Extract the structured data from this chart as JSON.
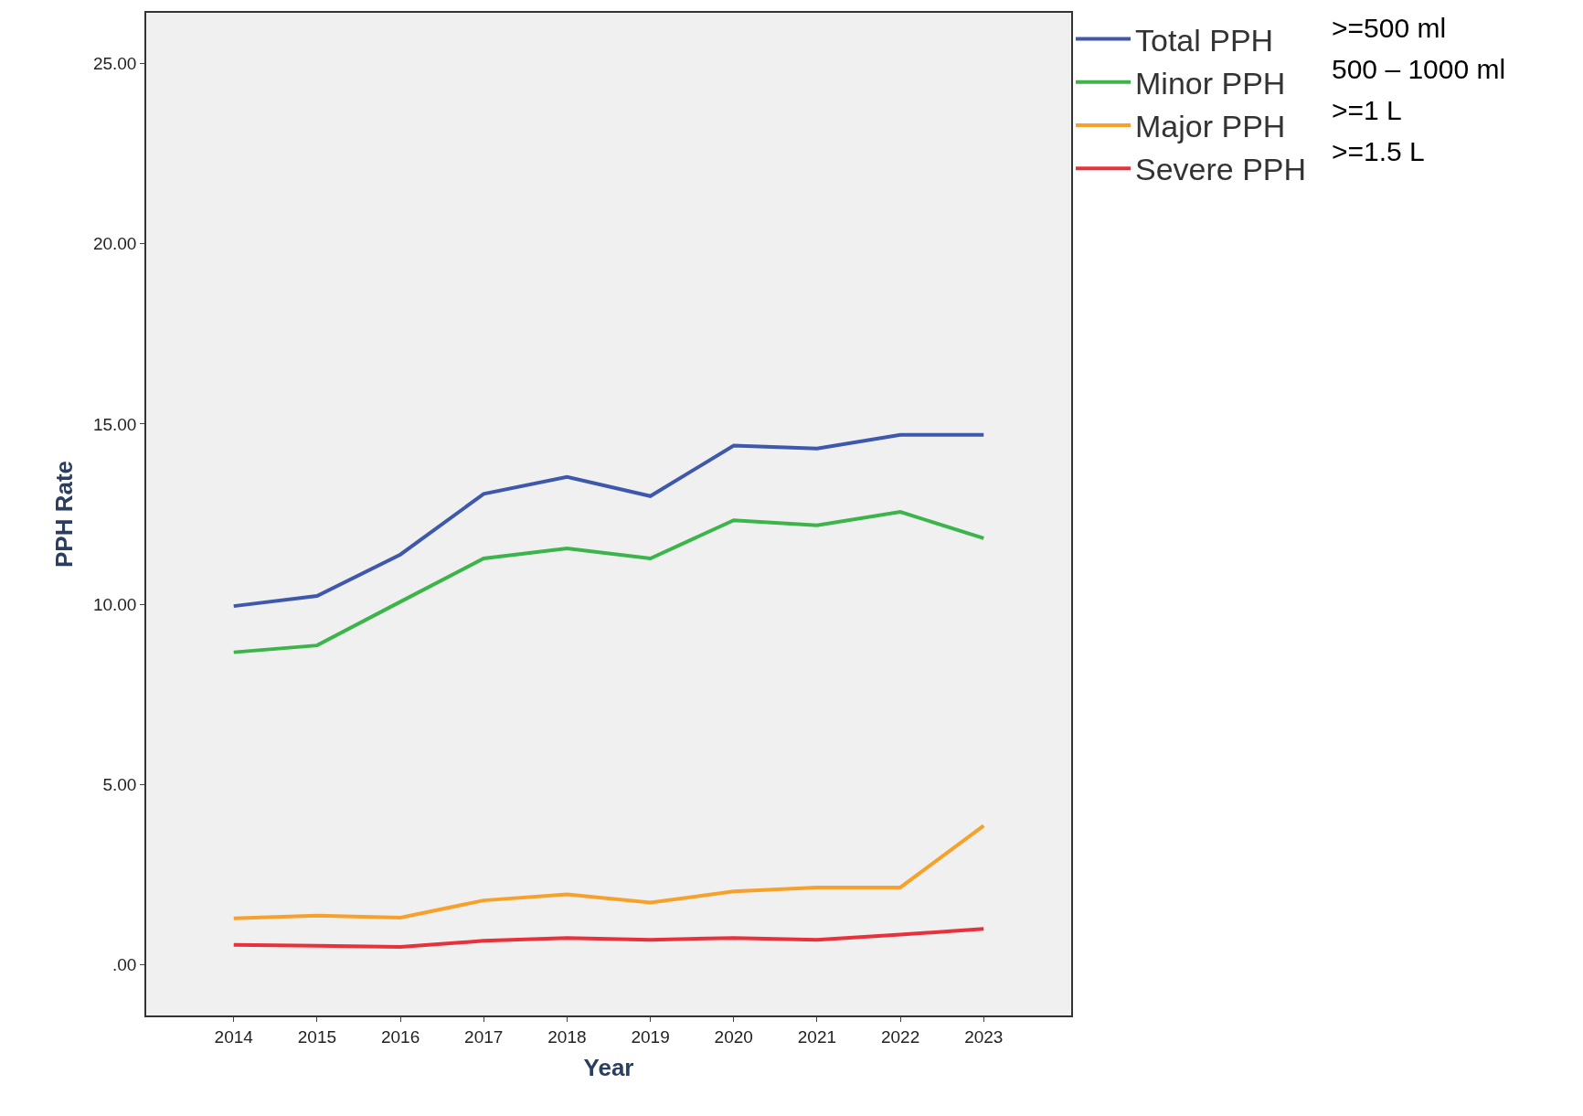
{
  "chart_data": {
    "type": "line",
    "xlabel": "Year",
    "ylabel": "PPH Rate",
    "x": [
      2014,
      2015,
      2016,
      2017,
      2018,
      2019,
      2020,
      2021,
      2022,
      2023
    ],
    "xlim": [
      2012.95,
      2024.05
    ],
    "xticks": [
      2014,
      2015,
      2016,
      2017,
      2018,
      2019,
      2020,
      2021,
      2022,
      2023
    ],
    "ylim": [
      -1.4,
      26.4
    ],
    "yticks": [
      {
        "value": 0,
        "label": ".00"
      },
      {
        "value": 5,
        "label": "5.00"
      },
      {
        "value": 10,
        "label": "10.00"
      },
      {
        "value": 15,
        "label": "15.00"
      },
      {
        "value": 20,
        "label": "20.00"
      },
      {
        "value": 25,
        "label": "25.00"
      }
    ],
    "grid": false,
    "legend": "top right",
    "marker": "none",
    "line_style": "solid",
    "series": [
      {
        "name": "Total PPH",
        "color": "#3e58ac",
        "values": [
          9.95,
          10.23,
          11.38,
          13.06,
          13.53,
          13.0,
          14.4,
          14.32,
          14.7,
          14.7
        ]
      },
      {
        "name": "Minor PPH",
        "color": "#3bb54a",
        "values": [
          8.67,
          8.86,
          10.07,
          11.27,
          11.55,
          11.27,
          12.33,
          12.19,
          12.56,
          11.83
        ]
      },
      {
        "name": "Major PPH",
        "color": "#f7a12b",
        "values": [
          1.29,
          1.37,
          1.31,
          1.79,
          1.96,
          1.73,
          2.04,
          2.15,
          2.15,
          3.86
        ]
      },
      {
        "name": "Severe PPH",
        "color": "#e8313a",
        "values": [
          0.56,
          0.53,
          0.5,
          0.67,
          0.75,
          0.7,
          0.75,
          0.7,
          0.84,
          1.0
        ]
      }
    ],
    "annotations": [
      ">=500 ml",
      "500 – 1000 ml",
      ">=1 L",
      ">=1.5 L"
    ]
  }
}
